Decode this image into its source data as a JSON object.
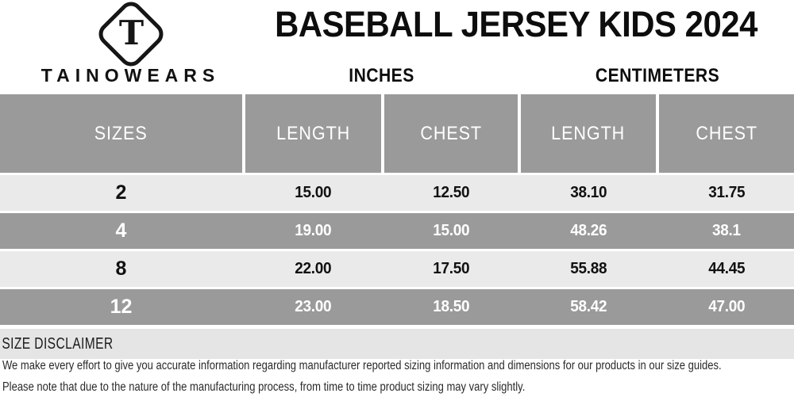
{
  "brand": {
    "name": "TAINOWEARS",
    "logo_letter": "T"
  },
  "header": {
    "title": "BASEBALL JERSEY KIDS 2024",
    "units": [
      "INCHES",
      "CENTIMETERS"
    ]
  },
  "table": {
    "columns": [
      "SIZES",
      "LENGTH",
      "CHEST",
      "LENGTH",
      "CHEST"
    ],
    "rows": [
      {
        "size": "2",
        "values": [
          "15.00",
          "12.50",
          "38.10",
          "31.75"
        ]
      },
      {
        "size": "4",
        "values": [
          "19.00",
          "15.00",
          "48.26",
          "38.1"
        ]
      },
      {
        "size": "8",
        "values": [
          "22.00",
          "17.50",
          "55.88",
          "44.45"
        ]
      },
      {
        "size": "12",
        "values": [
          "23.00",
          "18.50",
          "58.42",
          "47.00"
        ]
      }
    ]
  },
  "disclaimer": {
    "heading": "SIZE DISCLAIMER",
    "lines": [
      "We make every effort to give you accurate information regarding manufacturer reported sizing information and dimensions for our products in our size guides.",
      "Please note that due to the nature of the manufacturing process, from time to time product sizing may vary slightly."
    ]
  },
  "colors": {
    "table_header_bg": "#9a9a9a",
    "row_light_bg": "#eaeaea",
    "row_dark_bg": "#9a9a9a",
    "disclaimer_band_bg": "#e5e5e5",
    "header_text": "#ffffff",
    "body_text": "#111111"
  }
}
